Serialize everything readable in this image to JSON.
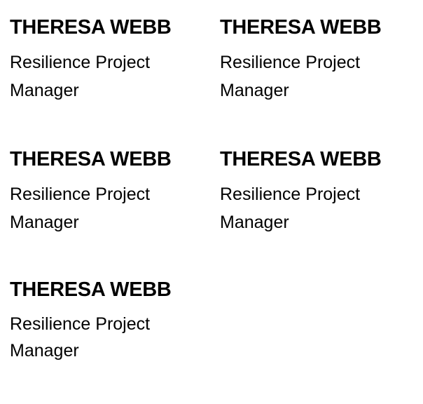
{
  "team": {
    "members": [
      {
        "name": "THERESA WEBB",
        "title": "Resilience Project Manager"
      },
      {
        "name": "THERESA WEBB",
        "title": "Resilience Project Manager"
      },
      {
        "name": "THERESA WEBB",
        "title": "Resilience Project Manager"
      },
      {
        "name": "THERESA WEBB",
        "title": "Resilience Project Manager"
      },
      {
        "name": "THERESA WEBB",
        "title": "Resilience Project Manager"
      }
    ]
  }
}
